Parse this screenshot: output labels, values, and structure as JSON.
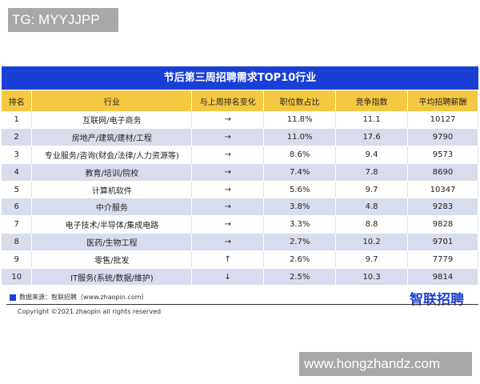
{
  "watermark_top": "TG: MYYJJPP",
  "watermark_bottom": "www.hongzhandz.com",
  "title": "节后第三周招聘需求TOP10行业",
  "columns": [
    "排名",
    "行业",
    "与上周排名变化",
    "职位数占比",
    "竞争指数",
    "平均招聘薪酬"
  ],
  "rows": [
    [
      "1",
      "互联网/电子商务",
      "→",
      "11.8%",
      "11.1",
      "10127"
    ],
    [
      "2",
      "房地产/建筑/建材/工程",
      "→",
      "11.0%",
      "17.6",
      "9790"
    ],
    [
      "3",
      "专业服务/咨询(财会/法律/人力资源等)",
      "→",
      "8.6%",
      "9.4",
      "9573"
    ],
    [
      "4",
      "教育/培训/院校",
      "→",
      "7.4%",
      "7.8",
      "8690"
    ],
    [
      "5",
      "计算机软件",
      "→",
      "5.6%",
      "9.7",
      "10347"
    ],
    [
      "6",
      "中介服务",
      "→",
      "3.8%",
      "4.8",
      "9283"
    ],
    [
      "7",
      "电子技术/半导体/集成电路",
      "→",
      "3.3%",
      "8.8",
      "9828"
    ],
    [
      "8",
      "医药/生物工程",
      "→",
      "2.7%",
      "10.2",
      "9701"
    ],
    [
      "9",
      "零售/批发",
      "↑",
      "2.6%",
      "9.7",
      "7779"
    ],
    [
      "10",
      "IT服务(系统/数据/维护)",
      "↓",
      "2.5%",
      "10.3",
      "9814"
    ]
  ],
  "source": "数据来源：智联招聘（www.zhaopin.com）",
  "copyright": "Copyright ©2021 zhaopin all rights reserved",
  "logo": "智联招聘",
  "colors": {
    "title_bg": "#1a3fd6",
    "header_bg": "#f5c842",
    "alt_row": "#d9dcec"
  }
}
